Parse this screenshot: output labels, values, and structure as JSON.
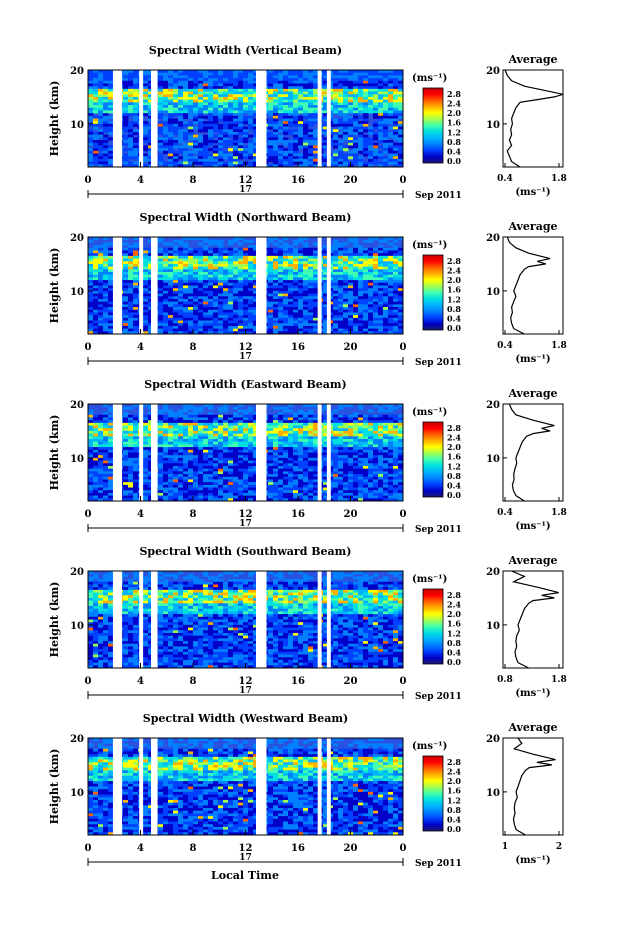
{
  "figure": {
    "xlabel": "Local Time",
    "colorscale": [
      "#1a1a6e",
      "#0000c8",
      "#0040ff",
      "#0080ff",
      "#00b4ff",
      "#00e0e0",
      "#40ffb0",
      "#a0ff50",
      "#ffff00",
      "#ffb000",
      "#ff6000",
      "#ff0000",
      "#c80000"
    ]
  },
  "chart_data": [
    {
      "type": "heatmap",
      "title": "Spectral Width (Vertical Beam)",
      "ylabel": "Height (km)",
      "xticks": [
        "0",
        "4",
        "8",
        "12",
        "16",
        "20",
        "0"
      ],
      "yticks": [
        "20",
        "10"
      ],
      "day_label": "17",
      "date_label": "Sep 2011",
      "colorbar": {
        "unit": "(ms⁻¹)",
        "ticks": [
          "2.8",
          "2.4",
          "2.0",
          "1.6",
          "1.2",
          "0.8",
          "0.4",
          "0.0"
        ]
      },
      "xlim": [
        0,
        24
      ],
      "ylim": [
        2,
        20
      ],
      "gaps_hours": [
        [
          1.9,
          2.6
        ],
        [
          3.9,
          4.2
        ],
        [
          4.8,
          5.3
        ],
        [
          12.8,
          13.6
        ],
        [
          17.5,
          17.8
        ],
        [
          18.2,
          18.5
        ]
      ],
      "profile": {
        "title": "Average",
        "xlabel": "(ms⁻¹)",
        "xticks": [
          "0.4",
          "1.8"
        ],
        "yticks": [
          "20",
          "10"
        ],
        "xlim": [
          0.4,
          1.8
        ],
        "heights": [
          20,
          19,
          18,
          17,
          16,
          15.5,
          15,
          14.5,
          14,
          13,
          12,
          11,
          10,
          9,
          8,
          7,
          6,
          5,
          4,
          3,
          2
        ],
        "values": [
          0.45,
          0.5,
          0.6,
          0.9,
          1.5,
          1.8,
          1.6,
          1.2,
          0.8,
          0.7,
          0.65,
          0.6,
          0.62,
          0.58,
          0.6,
          0.55,
          0.6,
          0.5,
          0.55,
          0.6,
          0.8
        ]
      }
    },
    {
      "type": "heatmap",
      "title": "Spectral Width (Northward Beam)",
      "ylabel": "Height (km)",
      "xticks": [
        "0",
        "4",
        "8",
        "12",
        "16",
        "20",
        "0"
      ],
      "yticks": [
        "20",
        "10"
      ],
      "day_label": "17",
      "date_label": "Sep 2011",
      "colorbar": {
        "unit": "(ms⁻¹)",
        "ticks": [
          "2.8",
          "2.4",
          "2.0",
          "1.6",
          "1.2",
          "0.8",
          "0.4",
          "0.0"
        ]
      },
      "xlim": [
        0,
        24
      ],
      "ylim": [
        2,
        20
      ],
      "gaps_hours": [
        [
          1.9,
          2.6
        ],
        [
          3.9,
          4.2
        ],
        [
          4.8,
          5.3
        ],
        [
          12.8,
          13.6
        ],
        [
          17.5,
          17.8
        ],
        [
          18.2,
          18.5
        ]
      ],
      "profile": {
        "title": "Average",
        "xlabel": "(ms⁻¹)",
        "xticks": [
          "0.4",
          "1.8"
        ],
        "yticks": [
          "20",
          "10"
        ],
        "xlim": [
          0.4,
          1.8
        ],
        "heights": [
          20,
          19,
          18,
          17,
          16,
          15.5,
          15,
          14.5,
          14,
          13,
          12,
          11,
          10,
          9,
          8,
          7,
          6,
          5,
          4,
          3,
          2
        ],
        "values": [
          0.5,
          0.55,
          0.7,
          1.0,
          1.5,
          1.2,
          1.4,
          1.0,
          0.9,
          0.8,
          0.75,
          0.7,
          0.65,
          0.7,
          0.65,
          0.6,
          0.62,
          0.58,
          0.6,
          0.65,
          0.9
        ]
      }
    },
    {
      "type": "heatmap",
      "title": "Spectral Width (Eastward Beam)",
      "ylabel": "Height (km)",
      "xticks": [
        "0",
        "4",
        "8",
        "12",
        "16",
        "20",
        "0"
      ],
      "yticks": [
        "20",
        "10"
      ],
      "day_label": "17",
      "date_label": "Sep 2011",
      "colorbar": {
        "unit": "(ms⁻¹)",
        "ticks": [
          "2.8",
          "2.4",
          "2.0",
          "1.6",
          "1.2",
          "0.8",
          "0.4",
          "0.0"
        ]
      },
      "xlim": [
        0,
        24
      ],
      "ylim": [
        2,
        20
      ],
      "gaps_hours": [
        [
          1.9,
          2.6
        ],
        [
          3.9,
          4.2
        ],
        [
          4.8,
          5.3
        ],
        [
          12.8,
          13.6
        ],
        [
          17.5,
          17.8
        ],
        [
          18.2,
          18.5
        ]
      ],
      "profile": {
        "title": "Average",
        "xlabel": "(ms⁻¹)",
        "xticks": [
          "0.4",
          "1.8"
        ],
        "yticks": [
          "20",
          "10"
        ],
        "xlim": [
          0.4,
          1.8
        ],
        "heights": [
          20,
          19,
          18,
          17,
          16,
          15.5,
          15,
          14.5,
          14,
          13,
          12,
          11,
          10,
          9,
          8,
          7,
          6,
          5,
          4,
          3,
          2
        ],
        "values": [
          0.55,
          0.6,
          0.7,
          1.1,
          1.6,
          1.3,
          1.5,
          1.1,
          0.95,
          0.85,
          0.8,
          0.75,
          0.7,
          0.72,
          0.68,
          0.65,
          0.66,
          0.62,
          0.64,
          0.7,
          0.9
        ]
      }
    },
    {
      "type": "heatmap",
      "title": "Spectral Width (Southward Beam)",
      "ylabel": "Height (km)",
      "xticks": [
        "0",
        "4",
        "8",
        "12",
        "16",
        "20",
        "0"
      ],
      "yticks": [
        "20",
        "10"
      ],
      "day_label": "17",
      "date_label": "Sep 2011",
      "colorbar": {
        "unit": "(ms⁻¹)",
        "ticks": [
          "2.8",
          "2.4",
          "2.0",
          "1.6",
          "1.2",
          "0.8",
          "0.4",
          "0.0"
        ]
      },
      "xlim": [
        0,
        24
      ],
      "ylim": [
        2,
        20
      ],
      "gaps_hours": [
        [
          1.9,
          2.6
        ],
        [
          3.9,
          4.2
        ],
        [
          4.8,
          5.3
        ],
        [
          12.8,
          13.6
        ],
        [
          17.5,
          17.8
        ],
        [
          18.2,
          18.5
        ]
      ],
      "profile": {
        "title": "Average",
        "xlabel": "(ms⁻¹)",
        "xticks": [
          "0.8",
          "1.8"
        ],
        "yticks": [
          "20",
          "10"
        ],
        "xlim": [
          0.4,
          1.8
        ],
        "heights": [
          20,
          19,
          18,
          17,
          16,
          15.5,
          15,
          14.5,
          14,
          13,
          12,
          11,
          10,
          9,
          8,
          7,
          6,
          5,
          4,
          3,
          2
        ],
        "values": [
          0.6,
          0.9,
          0.65,
          1.2,
          1.7,
          1.3,
          1.6,
          1.1,
          1.0,
          0.9,
          0.85,
          0.8,
          0.75,
          0.78,
          0.72,
          0.7,
          0.72,
          0.68,
          0.7,
          0.75,
          1.0
        ]
      }
    },
    {
      "type": "heatmap",
      "title": "Spectral Width (Westward Beam)",
      "ylabel": "Height (km)",
      "xticks": [
        "0",
        "4",
        "8",
        "12",
        "16",
        "20",
        "0"
      ],
      "yticks": [
        "20",
        "10"
      ],
      "day_label": "17",
      "date_label": "Sep 2011",
      "colorbar": {
        "unit": "(ms⁻¹)",
        "ticks": [
          "2.8",
          "2.4",
          "2.0",
          "1.6",
          "1.2",
          "0.8",
          "0.4",
          "0.0"
        ]
      },
      "xlim": [
        0,
        24
      ],
      "ylim": [
        2,
        20
      ],
      "gaps_hours": [
        [
          1.9,
          2.6
        ],
        [
          3.9,
          4.2
        ],
        [
          4.8,
          5.3
        ],
        [
          12.8,
          13.6
        ],
        [
          17.5,
          17.8
        ],
        [
          18.2,
          18.5
        ]
      ],
      "profile": {
        "title": "Average",
        "xlabel": "(ms⁻¹)",
        "xticks": [
          "1",
          "2"
        ],
        "yticks": [
          "20",
          "10"
        ],
        "xlim": [
          0.5,
          2.1
        ],
        "heights": [
          20,
          19,
          18,
          17,
          16,
          15.5,
          15,
          14.5,
          14,
          13,
          12,
          11,
          10,
          9,
          8,
          7,
          6,
          5,
          4,
          3,
          2
        ],
        "values": [
          0.9,
          1.0,
          0.8,
          1.3,
          1.9,
          1.4,
          1.8,
          1.2,
          1.1,
          1.0,
          0.95,
          0.9,
          0.85,
          0.88,
          0.82,
          0.8,
          0.82,
          0.78,
          0.8,
          0.85,
          1.1
        ]
      }
    }
  ]
}
